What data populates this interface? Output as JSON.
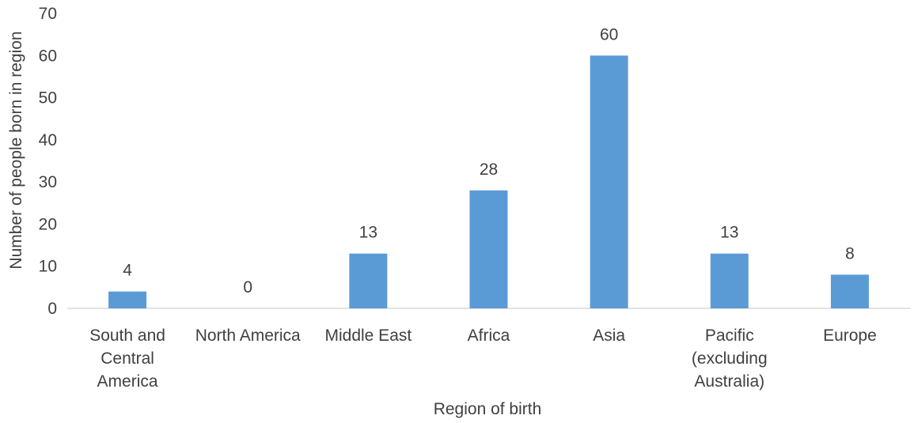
{
  "chart_data": {
    "type": "bar",
    "categories": [
      [
        "South and",
        "Central",
        "America"
      ],
      [
        "North America"
      ],
      [
        "Middle East"
      ],
      [
        "Africa"
      ],
      [
        "Asia"
      ],
      [
        "Pacific",
        "(excluding",
        "Australia)"
      ],
      [
        "Europe"
      ]
    ],
    "values": [
      4,
      0,
      13,
      28,
      60,
      13,
      8
    ],
    "data_labels": [
      "4",
      "0",
      "13",
      "28",
      "60",
      "13",
      "8"
    ],
    "xlabel": "Region of birth",
    "ylabel": "Number of people born in region",
    "ylim": [
      0,
      70
    ],
    "yticks": [
      "0",
      "10",
      "20",
      "30",
      "40",
      "50",
      "60",
      "70"
    ],
    "grid": false,
    "legend": "none",
    "bar_color": "#5B9BD5",
    "axis_color": "#D9D9D9",
    "text_color": "#404040"
  }
}
